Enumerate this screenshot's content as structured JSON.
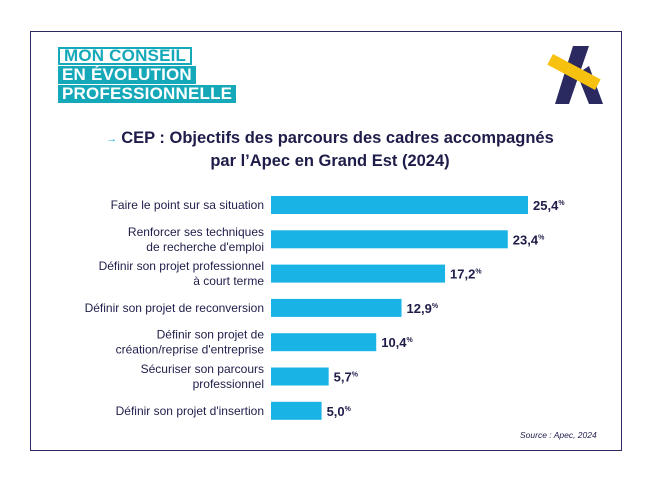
{
  "badge": {
    "line1": "MON CONSEIL",
    "line2": "EN ÉVOLUTION",
    "line3": "PROFESSIONNELLE"
  },
  "logo": {
    "icon": "apec-a-logo",
    "colors": {
      "navy": "#2a2960",
      "yellow": "#f6c10f"
    }
  },
  "title_arrow": "→",
  "title_line1": "CEP : Objectifs des parcours des cadres accompagnés",
  "title_line2": "par l’Apec en Grand Est (2024)",
  "source": "Source : Apec, 2024",
  "colors": {
    "bar": "#1ab3e6",
    "text": "#1e1d4a",
    "border": "#2a2960",
    "badge": "#14a8b9"
  },
  "chart_data": {
    "type": "bar",
    "orientation": "horizontal",
    "title": "CEP : Objectifs des parcours des cadres accompagnés par l’Apec en Grand Est (2024)",
    "unit": "%",
    "categories": [
      [
        "Faire le point sur sa situation"
      ],
      [
        "Renforcer ses techniques",
        "de recherche d'emploi"
      ],
      [
        "Définir son projet professionnel",
        "à court terme"
      ],
      [
        "Définir son projet de reconversion"
      ],
      [
        "Définir son projet de",
        "création/reprise d'entreprise"
      ],
      [
        "Sécuriser son parcours",
        "professionnel"
      ],
      [
        "Définir son projet d'insertion"
      ]
    ],
    "values": [
      25.4,
      23.4,
      17.2,
      12.9,
      10.4,
      5.7,
      5.0
    ],
    "value_labels": [
      "25,4",
      "23,4",
      "17,2",
      "12,9",
      "10,4",
      "5,7",
      "5,0"
    ],
    "xlim": [
      0,
      25.4
    ],
    "grid": false
  }
}
